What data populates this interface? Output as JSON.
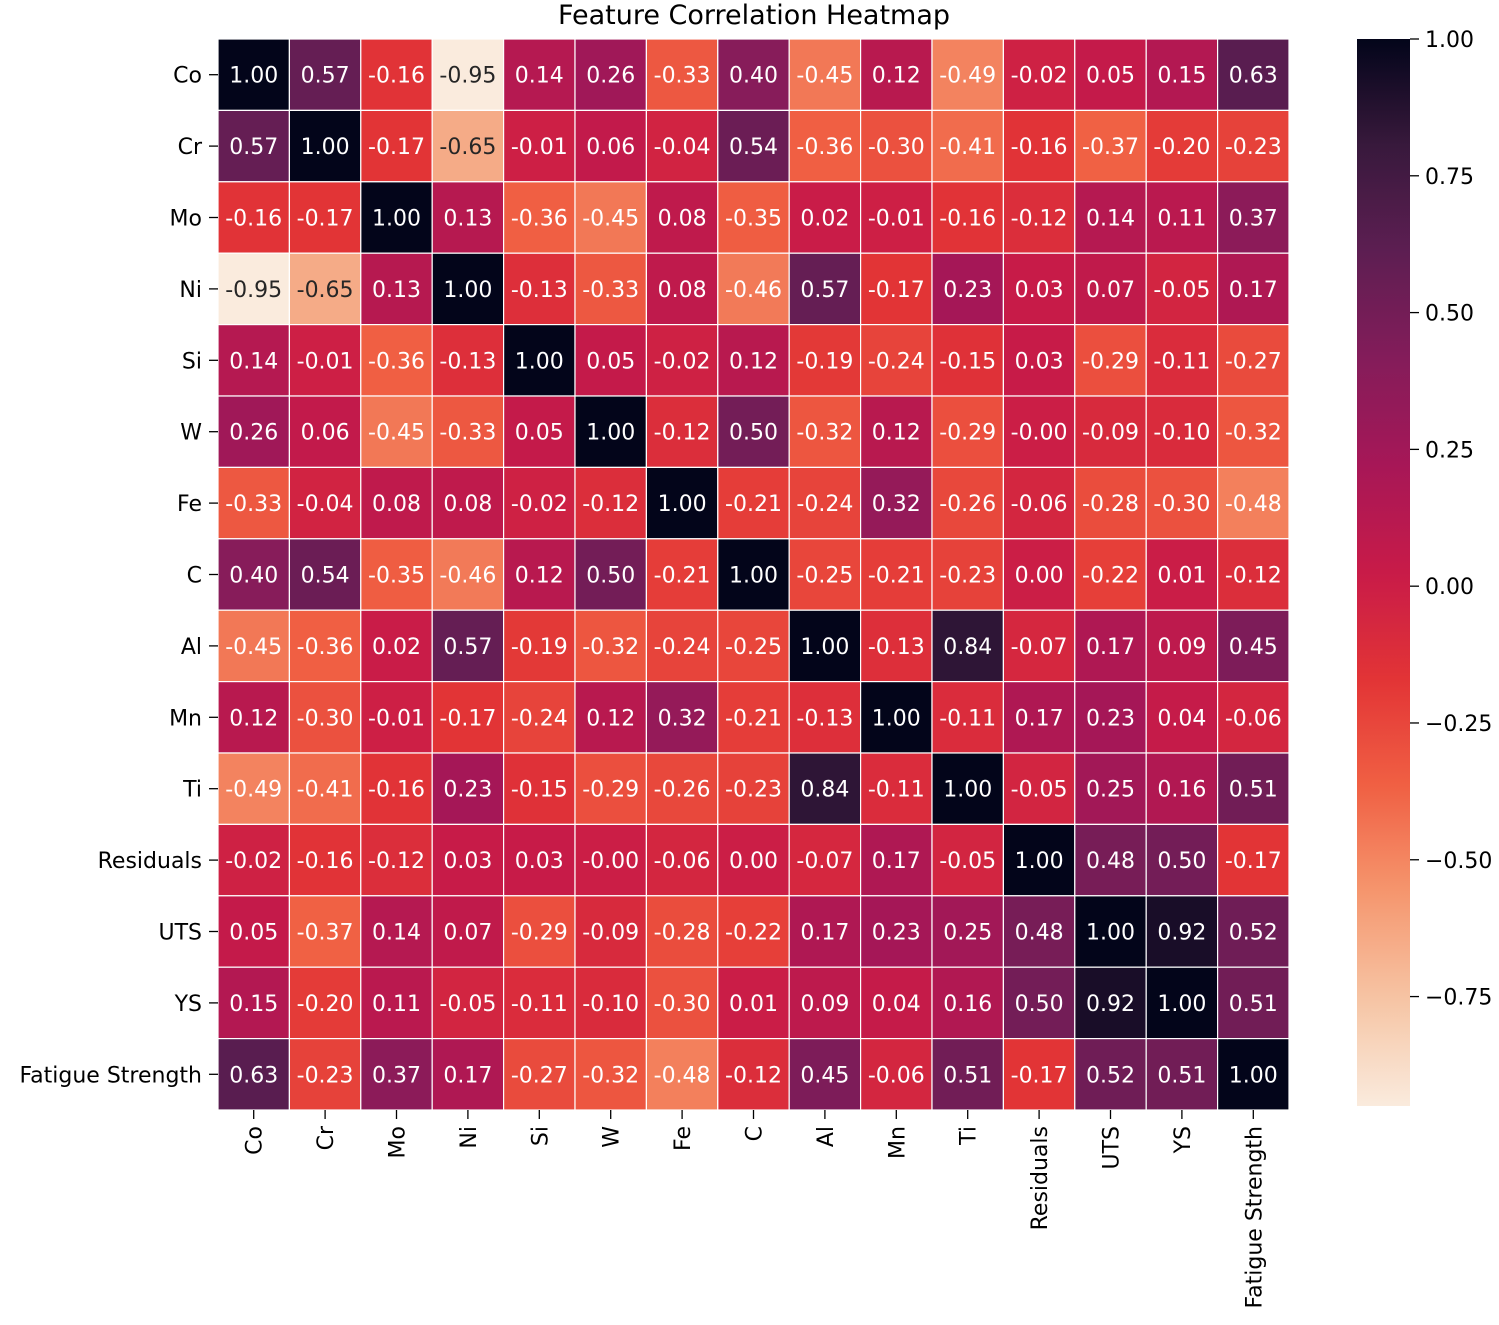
{
  "chart_data": {
    "type": "heatmap",
    "title": "Feature Correlation Heatmap",
    "xlabel": "",
    "ylabel": "",
    "labels": [
      "Co",
      "Cr",
      "Mo",
      "Ni",
      "Si",
      "W",
      "Fe",
      "C",
      "Al",
      "Mn",
      "Ti",
      "Residuals",
      "UTS",
      "YS",
      "Fatigue Strength"
    ],
    "matrix": [
      [
        1.0,
        0.57,
        -0.16,
        -0.95,
        0.14,
        0.26,
        -0.33,
        0.4,
        -0.45,
        0.12,
        -0.49,
        -0.02,
        0.05,
        0.15,
        0.63
      ],
      [
        0.57,
        1.0,
        -0.17,
        -0.65,
        -0.01,
        0.06,
        -0.04,
        0.54,
        -0.36,
        -0.3,
        -0.41,
        -0.16,
        -0.37,
        -0.2,
        -0.23
      ],
      [
        -0.16,
        -0.17,
        1.0,
        0.13,
        -0.36,
        -0.45,
        0.08,
        -0.35,
        0.02,
        -0.01,
        -0.16,
        -0.12,
        0.14,
        0.11,
        0.37
      ],
      [
        -0.95,
        -0.65,
        0.13,
        1.0,
        -0.13,
        -0.33,
        0.08,
        -0.46,
        0.57,
        -0.17,
        0.23,
        0.03,
        0.07,
        -0.05,
        0.17
      ],
      [
        0.14,
        -0.01,
        -0.36,
        -0.13,
        1.0,
        0.05,
        -0.02,
        0.12,
        -0.19,
        -0.24,
        -0.15,
        0.03,
        -0.29,
        -0.11,
        -0.27
      ],
      [
        0.26,
        0.06,
        -0.45,
        -0.33,
        0.05,
        1.0,
        -0.12,
        0.5,
        -0.32,
        0.12,
        -0.29,
        -0.0,
        -0.09,
        -0.1,
        -0.32
      ],
      [
        -0.33,
        -0.04,
        0.08,
        0.08,
        -0.02,
        -0.12,
        1.0,
        -0.21,
        -0.24,
        0.32,
        -0.26,
        -0.06,
        -0.28,
        -0.3,
        -0.48
      ],
      [
        0.4,
        0.54,
        -0.35,
        -0.46,
        0.12,
        0.5,
        -0.21,
        1.0,
        -0.25,
        -0.21,
        -0.23,
        0.0,
        -0.22,
        0.01,
        -0.12
      ],
      [
        -0.45,
        -0.36,
        0.02,
        0.57,
        -0.19,
        -0.32,
        -0.24,
        -0.25,
        1.0,
        -0.13,
        0.84,
        -0.07,
        0.17,
        0.09,
        0.45
      ],
      [
        0.12,
        -0.3,
        -0.01,
        -0.17,
        -0.24,
        0.12,
        0.32,
        -0.21,
        -0.13,
        1.0,
        -0.11,
        0.17,
        0.23,
        0.04,
        -0.06
      ],
      [
        -0.49,
        -0.41,
        -0.16,
        0.23,
        -0.15,
        -0.29,
        -0.26,
        -0.23,
        0.84,
        -0.11,
        1.0,
        -0.05,
        0.25,
        0.16,
        0.51
      ],
      [
        -0.02,
        -0.16,
        -0.12,
        0.03,
        0.03,
        -0.0,
        -0.06,
        0.0,
        -0.07,
        0.17,
        -0.05,
        1.0,
        0.48,
        0.5,
        -0.17
      ],
      [
        0.05,
        -0.37,
        0.14,
        0.07,
        -0.29,
        -0.09,
        -0.28,
        -0.22,
        0.17,
        0.23,
        0.25,
        0.48,
        1.0,
        0.92,
        0.52
      ],
      [
        0.15,
        -0.2,
        0.11,
        -0.05,
        -0.11,
        -0.1,
        -0.3,
        0.01,
        0.09,
        0.04,
        0.16,
        0.5,
        0.92,
        1.0,
        0.51
      ],
      [
        0.63,
        -0.23,
        0.37,
        0.17,
        -0.27,
        -0.32,
        -0.48,
        -0.12,
        0.45,
        -0.06,
        0.51,
        -0.17,
        0.52,
        0.51,
        1.0
      ]
    ],
    "value_format": "2 decimals",
    "colorbar": {
      "colormap": "rocket_r",
      "vmin": -0.95,
      "vmax": 1.0,
      "ticks": [
        1.0,
        0.75,
        0.5,
        0.25,
        0.0,
        -0.25,
        -0.5,
        -0.75
      ],
      "tick_labels": [
        "1.00",
        "0.75",
        "0.50",
        "0.25",
        "0.00",
        "−0.25",
        "−0.50",
        "−0.75"
      ],
      "position": "right"
    },
    "grid": true,
    "gridline_color": "#ffffff"
  }
}
